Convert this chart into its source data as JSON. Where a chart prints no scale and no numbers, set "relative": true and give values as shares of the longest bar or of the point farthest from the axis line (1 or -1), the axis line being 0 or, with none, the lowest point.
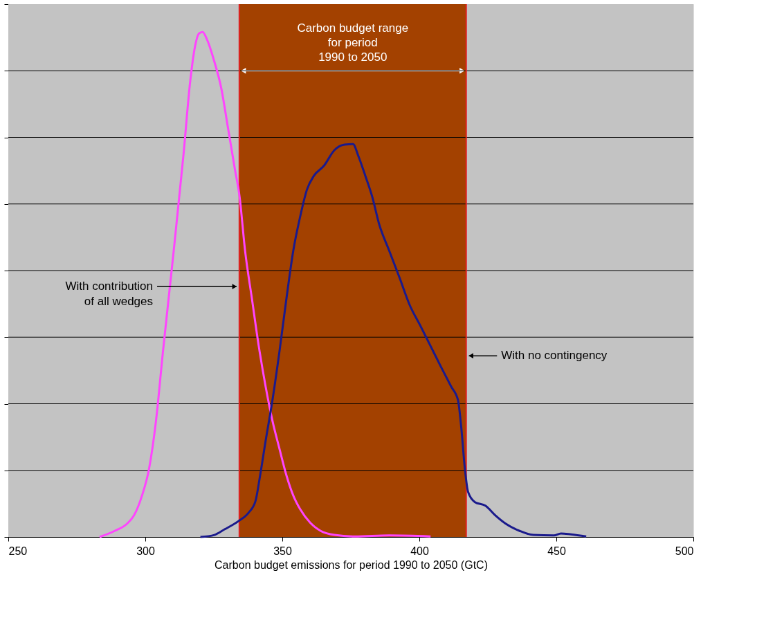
{
  "chart_data": {
    "type": "line",
    "relative": true,
    "xlabel": "Carbon budget emissions for period 1990 to 2050 (GtC)",
    "xlim": [
      250,
      500
    ],
    "xticks": [
      250,
      300,
      350,
      400,
      450,
      500
    ],
    "grid": "y",
    "series": [
      {
        "color": "#ff44ff",
        "x": [
          283.3,
          288.8,
          293.3,
          295.8,
          298.8,
          301.4,
          303.9,
          306.4,
          310.1,
          313.9,
          316.4,
          318.1,
          319.6,
          320.9,
          322.6,
          325.1,
          327.7,
          330.2,
          332.7,
          334.4,
          336.4,
          338.9,
          341.4,
          343.9,
          346.4,
          348.9,
          351.5,
          354.0,
          356.5,
          360.2,
          364.0,
          369.0,
          376.5,
          389.0,
          404.1
        ],
        "values": [
          0,
          0.012,
          0.026,
          0.042,
          0.082,
          0.136,
          0.23,
          0.365,
          0.553,
          0.755,
          0.903,
          0.97,
          0.997,
          1,
          0.984,
          0.943,
          0.889,
          0.809,
          0.728,
          0.674,
          0.567,
          0.472,
          0.378,
          0.298,
          0.23,
          0.176,
          0.122,
          0.082,
          0.055,
          0.028,
          0.012,
          0.004,
          0.001,
          0.003,
          0.001
        ]
      },
      {
        "color": "#1a1a8c",
        "x": [
          320.1,
          325.2,
          328.9,
          333.9,
          337.7,
          340.2,
          341.9,
          343.9,
          346.4,
          348.9,
          351.5,
          354.0,
          356.5,
          359.0,
          361.5,
          365.2,
          369.0,
          372.7,
          375.8,
          377.7,
          380.3,
          382.8,
          385.3,
          389.0,
          392.8,
          396.5,
          400.3,
          404.1,
          407.8,
          411.6,
          414.1,
          415.3,
          416.6,
          417.8,
          420.3,
          424.1,
          427.9,
          431.6,
          436.6,
          441.6,
          449.1,
          451.7,
          455.4,
          460.9
        ],
        "values": [
          0,
          0.004,
          0.015,
          0.031,
          0.048,
          0.071,
          0.122,
          0.19,
          0.271,
          0.365,
          0.472,
          0.567,
          0.634,
          0.688,
          0.715,
          0.735,
          0.766,
          0.777,
          0.778,
          0.755,
          0.715,
          0.674,
          0.62,
          0.567,
          0.513,
          0.459,
          0.419,
          0.378,
          0.338,
          0.298,
          0.271,
          0.217,
          0.136,
          0.089,
          0.069,
          0.062,
          0.042,
          0.026,
          0.012,
          0.004,
          0.003,
          0.007,
          0.005,
          0.001
        ]
      }
    ],
    "bands": [
      {
        "axis": "x",
        "from": 334.3,
        "to": 417.1,
        "label": "Carbon budget range\nfor period\n1990 to 2050",
        "color": "#a34100"
      }
    ],
    "ref_lines": [
      {
        "axis": "x",
        "value": 334.3,
        "label": "With contribution\nof all wedges",
        "color": "#e02020"
      },
      {
        "axis": "x",
        "value": 417.1,
        "label": "With no contingency",
        "color": "#e02020"
      }
    ]
  }
}
